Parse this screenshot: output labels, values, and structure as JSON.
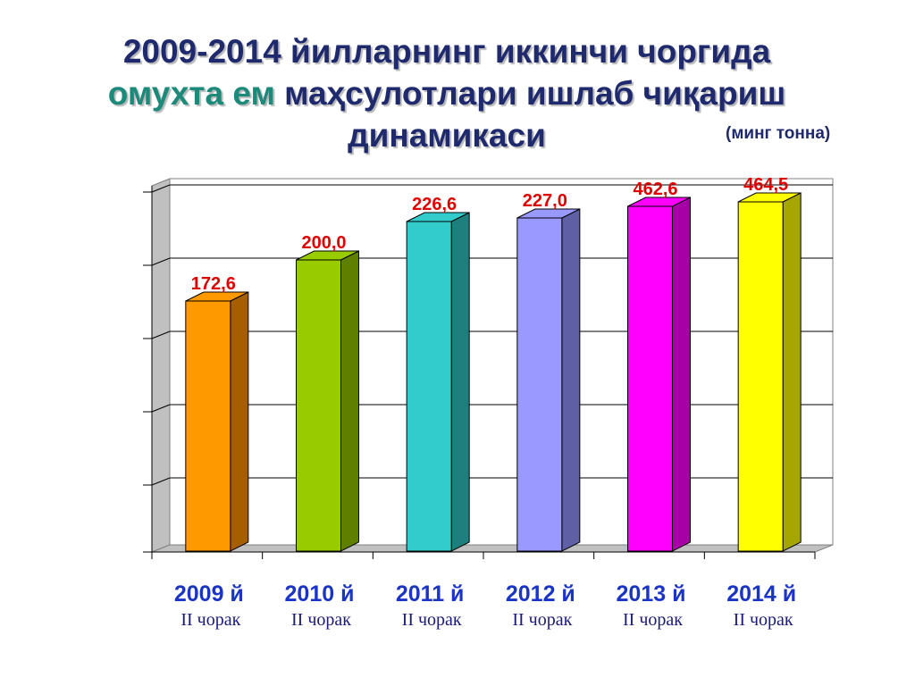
{
  "title": {
    "line1": "2009-2014 йилларнинг иккинчи чоргида",
    "highlight": "омухта ем",
    "line2_rest": "маҳсулотлари ишлаб чиқариш",
    "line3": "динамикаси"
  },
  "unit_label": "(минг тонна)",
  "chart_data": {
    "type": "bar",
    "categories": [
      "2009 й",
      "2010 й",
      "2011 й",
      "2012 й",
      "2013 й",
      "2014 й"
    ],
    "subcategories": [
      "II чорак",
      "II чорак",
      "II чорак",
      "II чорак",
      "II чорак",
      "II чорак"
    ],
    "values": [
      172.6,
      200.0,
      226.6,
      227.0,
      462.6,
      464.5
    ],
    "data_labels": [
      "172,6",
      "200,0",
      "226,6",
      "227,0",
      "462,6",
      "464,5"
    ],
    "bar_colors": [
      "#ff9900",
      "#99cc00",
      "#33cccc",
      "#9999ff",
      "#ff00ff",
      "#ffff00"
    ],
    "bar_side_colors": [
      "#a65f00",
      "#5f7f00",
      "#1f7f7f",
      "#5f5fa6",
      "#a600a6",
      "#a6a600"
    ],
    "grid": true
  }
}
